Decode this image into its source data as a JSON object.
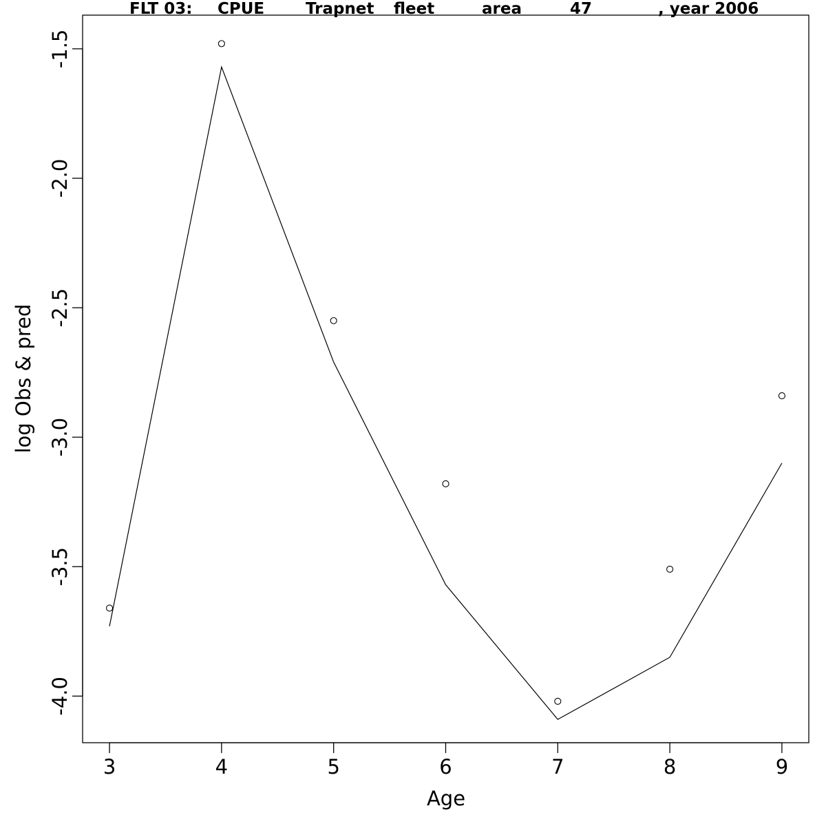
{
  "chart_data": {
    "type": "line",
    "title": "FLT 03:    CPUE       Trapnet   fleet         area         47             , year 2006",
    "title_parts": [
      "FLT 03:",
      "CPUE",
      "Trapnet",
      "fleet",
      "area",
      "47",
      ", year 2006"
    ],
    "xlabel": "Age",
    "ylabel": "log Obs & pred",
    "x": [
      3,
      4,
      5,
      6,
      7,
      8,
      9
    ],
    "xlim": [
      2.76,
      9.24
    ],
    "ylim": [
      -4.18,
      -1.37
    ],
    "x_ticks": [
      "3",
      "4",
      "5",
      "6",
      "7",
      "8",
      "9"
    ],
    "y_ticks": [
      "-4.0",
      "-3.5",
      "-3.0",
      "-2.5",
      "-2.0",
      "-1.5"
    ],
    "y_tick_values": [
      -4.0,
      -3.5,
      -3.0,
      -2.5,
      -2.0,
      -1.5
    ],
    "series": [
      {
        "name": "Obs",
        "style": "points",
        "values": [
          -3.66,
          -1.48,
          -2.55,
          -3.18,
          -4.02,
          -3.51,
          -2.84
        ]
      },
      {
        "name": "Pred",
        "style": "line",
        "values": [
          -3.73,
          -1.57,
          -2.71,
          -3.57,
          -4.09,
          -3.85,
          -3.1
        ]
      }
    ],
    "grid": false,
    "colors": {
      "line": "#000000",
      "points": "#000000"
    }
  }
}
